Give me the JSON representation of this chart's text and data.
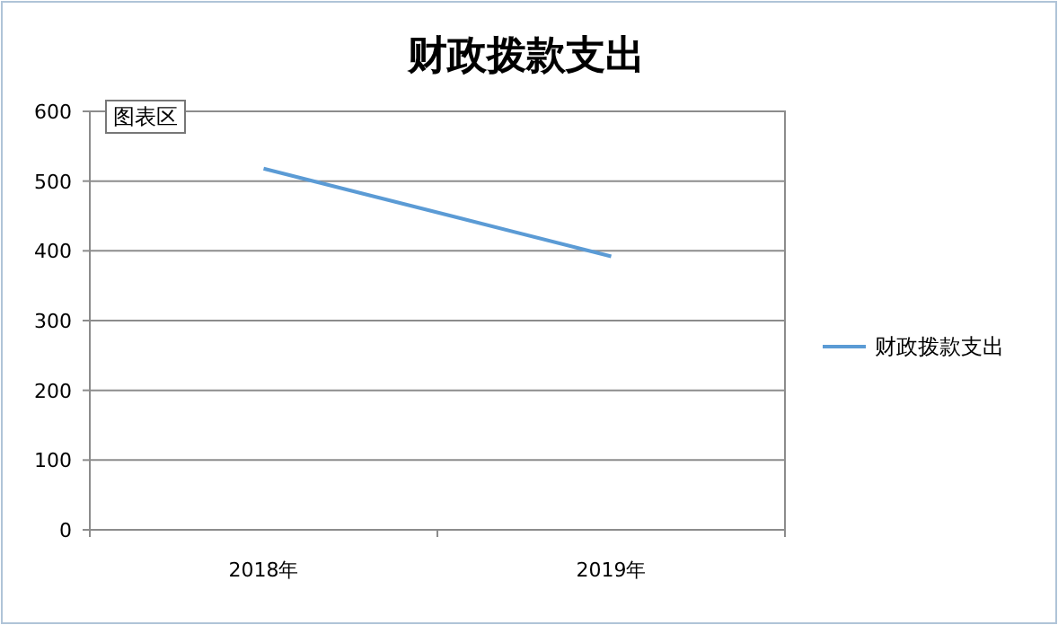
{
  "chart_data": {
    "type": "line",
    "title": "财政拨款支出",
    "categories": [
      "2018年",
      "2019年"
    ],
    "series": [
      {
        "name": "财政拨款支出",
        "color": "#5b9bd5",
        "values": [
          518,
          392
        ]
      }
    ],
    "ylim": [
      0,
      600
    ],
    "yticks": [
      0,
      100,
      200,
      300,
      400,
      500,
      600
    ],
    "grid": "y",
    "legend": "right",
    "marker": "none",
    "line_style": "solid",
    "annotations": [
      "图表区"
    ]
  }
}
